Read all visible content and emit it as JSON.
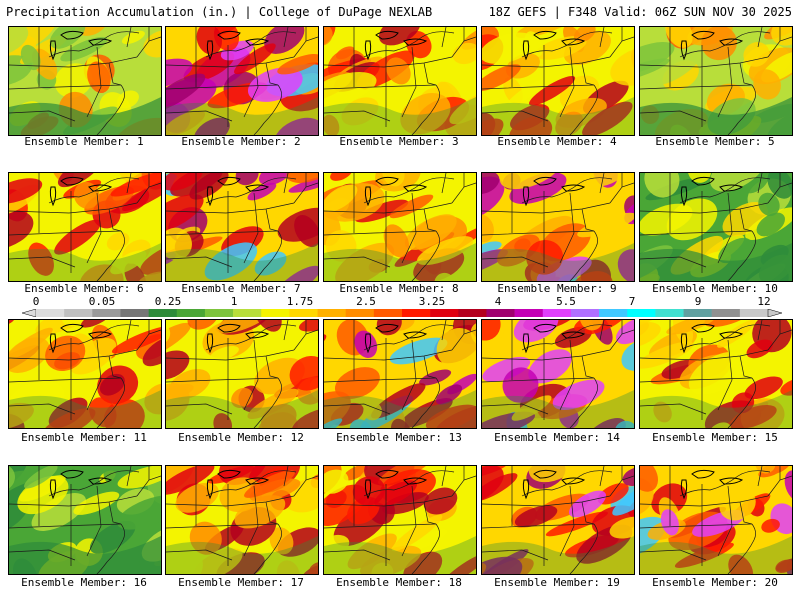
{
  "header": {
    "title_left": "Precipitation Accumulation (in.) | College of DuPage NEXLAB",
    "title_right": "18Z GEFS | F348 Valid: 06Z SUN NOV 30 2025"
  },
  "colors": {
    "scale": [
      "#dcdcdc",
      "#c0c0c0",
      "#9a9a9a",
      "#767676",
      "#2e8b3a",
      "#4aa636",
      "#7dc43c",
      "#b8de3a",
      "#f4f400",
      "#ffd700",
      "#ffb000",
      "#ff8c00",
      "#ff5a00",
      "#ff1a00",
      "#e00010",
      "#b4001e",
      "#a0006e",
      "#c400b4",
      "#e040fb",
      "#b070ff",
      "#40c8ff",
      "#00ffff",
      "#40e0d0",
      "#60a0a0",
      "#909090",
      "#c8c8c8"
    ]
  },
  "colorbar": {
    "ticks": [
      "0",
      "0.05",
      "0.25",
      "1",
      "1.75",
      "2.5",
      "3.25",
      "4",
      "5.5",
      "7",
      "9",
      "12"
    ]
  },
  "members": [
    {
      "label": "Ensemble Member: 1",
      "intensity": 1
    },
    {
      "label": "Ensemble Member: 2",
      "intensity": 3
    },
    {
      "label": "Ensemble Member: 3",
      "intensity": 2
    },
    {
      "label": "Ensemble Member: 4",
      "intensity": 2
    },
    {
      "label": "Ensemble Member: 5",
      "intensity": 1
    },
    {
      "label": "Ensemble Member: 6",
      "intensity": 2
    },
    {
      "label": "Ensemble Member: 7",
      "intensity": 3
    },
    {
      "label": "Ensemble Member: 8",
      "intensity": 2
    },
    {
      "label": "Ensemble Member: 9",
      "intensity": 3
    },
    {
      "label": "Ensemble Member: 10",
      "intensity": 0
    },
    {
      "label": "Ensemble Member: 11",
      "intensity": 2
    },
    {
      "label": "Ensemble Member: 12",
      "intensity": 2
    },
    {
      "label": "Ensemble Member: 13",
      "intensity": 3
    },
    {
      "label": "Ensemble Member: 14",
      "intensity": 3
    },
    {
      "label": "Ensemble Member: 15",
      "intensity": 2
    },
    {
      "label": "Ensemble Member: 16",
      "intensity": 0
    },
    {
      "label": "Ensemble Member: 17",
      "intensity": 2
    },
    {
      "label": "Ensemble Member: 18",
      "intensity": 2
    },
    {
      "label": "Ensemble Member: 19",
      "intensity": 3
    },
    {
      "label": "Ensemble Member: 20",
      "intensity": 3
    }
  ]
}
